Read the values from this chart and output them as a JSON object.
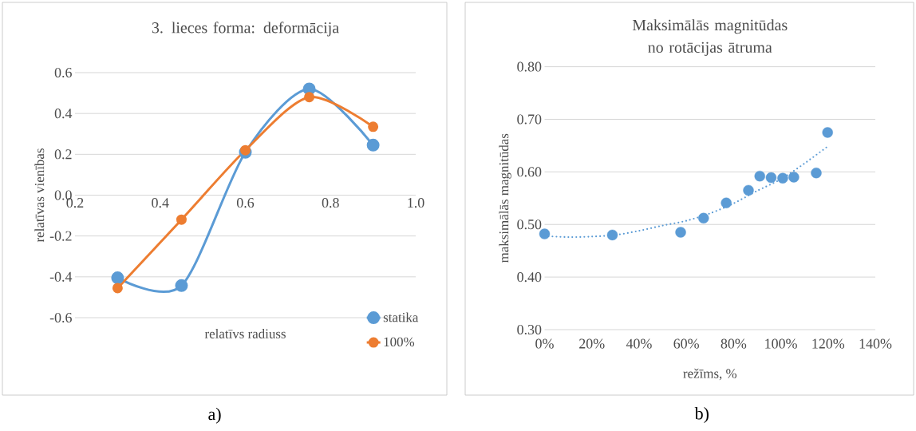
{
  "chart_data": [
    {
      "type": "line",
      "title": "3. lieces forma: deformācija",
      "xlabel": "relatīvs radiuss",
      "ylabel": "relatīvas vienības",
      "series": [
        {
          "name": "statika",
          "color": "#5b9bd5",
          "x": [
            0.3,
            0.45,
            0.6,
            0.75,
            0.9
          ],
          "values": [
            -0.405,
            -0.443,
            0.21,
            0.52,
            0.245
          ]
        },
        {
          "name": "100%",
          "color": "#ed7d31",
          "x": [
            0.3,
            0.45,
            0.6,
            0.75,
            0.9
          ],
          "values": [
            -0.455,
            -0.12,
            0.22,
            0.48,
            0.335
          ]
        }
      ],
      "xlim": [
        0.2,
        1.0
      ],
      "xticks": [
        {
          "value": 0.2,
          "label": "0.2"
        },
        {
          "value": 0.4,
          "label": "0.4"
        },
        {
          "value": 0.6,
          "label": "0.6"
        },
        {
          "value": 0.8,
          "label": "0.8"
        },
        {
          "value": 1.0,
          "label": "1.0"
        }
      ],
      "ylim": [
        -0.6,
        0.6
      ],
      "yticks": [
        {
          "value": -0.6,
          "label": "-0.6"
        },
        {
          "value": -0.4,
          "label": "-0.4"
        },
        {
          "value": -0.2,
          "label": "-0.2"
        },
        {
          "value": 0,
          "label": "0.0"
        },
        {
          "value": 0.2,
          "label": "0.2"
        },
        {
          "value": 0.4,
          "label": "0.4"
        },
        {
          "value": 0.6,
          "label": "0.6"
        }
      ],
      "grid": "y",
      "legend": "bottom right",
      "marker": "circle",
      "annotations": [
        "a)"
      ]
    },
    {
      "type": "scatter",
      "title": "Maksimālās magnitūdas no rotācijas ātruma",
      "xlabel": "režīms, %",
      "ylabel": "maksimālās magnitūdas",
      "series": [
        {
          "color": "#5b9bd5",
          "x": [
            0,
            28.7,
            57.6,
            67.3,
            76.9,
            86.3,
            91.1,
            95.9,
            100.8,
            105.5,
            115,
            119.8
          ],
          "values": [
            0.482,
            0.48,
            0.485,
            0.512,
            0.541,
            0.565,
            0.592,
            0.589,
            0.588,
            0.59,
            0.598,
            0.675
          ]
        },
        {
          "type": "line",
          "color": "#5b9bd5",
          "marker": "none",
          "line_style": "dotted",
          "x": [
            0,
            10,
            20,
            30,
            40,
            50,
            60,
            70,
            80,
            90,
            100,
            110,
            120
          ],
          "values": [
            0.478,
            0.476,
            0.477,
            0.48,
            0.488,
            0.498,
            0.507,
            0.521,
            0.54,
            0.564,
            0.586,
            0.616,
            0.649
          ]
        }
      ],
      "xlim": [
        0,
        140
      ],
      "xticks": [
        {
          "value": 0,
          "label": "0%"
        },
        {
          "value": 20,
          "label": "20%"
        },
        {
          "value": 40,
          "label": "40%"
        },
        {
          "value": 60,
          "label": "60%"
        },
        {
          "value": 80,
          "label": "80%"
        },
        {
          "value": 100,
          "label": "100%"
        },
        {
          "value": 120,
          "label": "120%"
        },
        {
          "value": 140,
          "label": "140%"
        }
      ],
      "ylim": [
        0.3,
        0.8
      ],
      "yticks": [
        {
          "value": 0.3,
          "label": "0.30"
        },
        {
          "value": 0.4,
          "label": "0.40"
        },
        {
          "value": 0.5,
          "label": "0.50"
        },
        {
          "value": 0.6,
          "label": "0.60"
        },
        {
          "value": 0.7,
          "label": "0.70"
        },
        {
          "value": 0.8,
          "label": "0.80"
        }
      ],
      "grid": "y",
      "marker": "circle",
      "annotations": [
        "b)"
      ]
    }
  ]
}
